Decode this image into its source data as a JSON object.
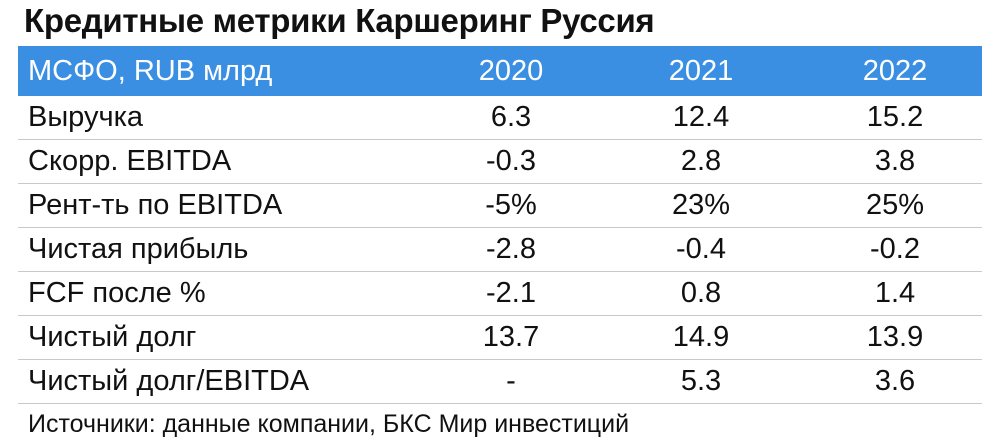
{
  "header": {
    "title": "Кредитные метрики Каршеринг Руссия"
  },
  "table": {
    "columns": [
      "МСФО, RUB млрд",
      "2020",
      "2021",
      "2022"
    ],
    "rows": [
      [
        "Выручка",
        "6.3",
        "12.4",
        "15.2"
      ],
      [
        "Скорр. EBITDA",
        "-0.3",
        "2.8",
        "3.8"
      ],
      [
        "Рент-ть по EBITDA",
        "-5%",
        "23%",
        "25%"
      ],
      [
        "Чистая прибыль",
        "-2.8",
        "-0.4",
        "-0.2"
      ],
      [
        "FCF после %",
        "-2.1",
        "0.8",
        "1.4"
      ],
      [
        "Чистый долг",
        "13.7",
        "14.9",
        "13.9"
      ],
      [
        "Чистый долг/EBITDA",
        "-",
        "5.3",
        "3.6"
      ]
    ]
  },
  "footer": {
    "source": "Источники: данные компании, БКС Мир инвестиций"
  }
}
